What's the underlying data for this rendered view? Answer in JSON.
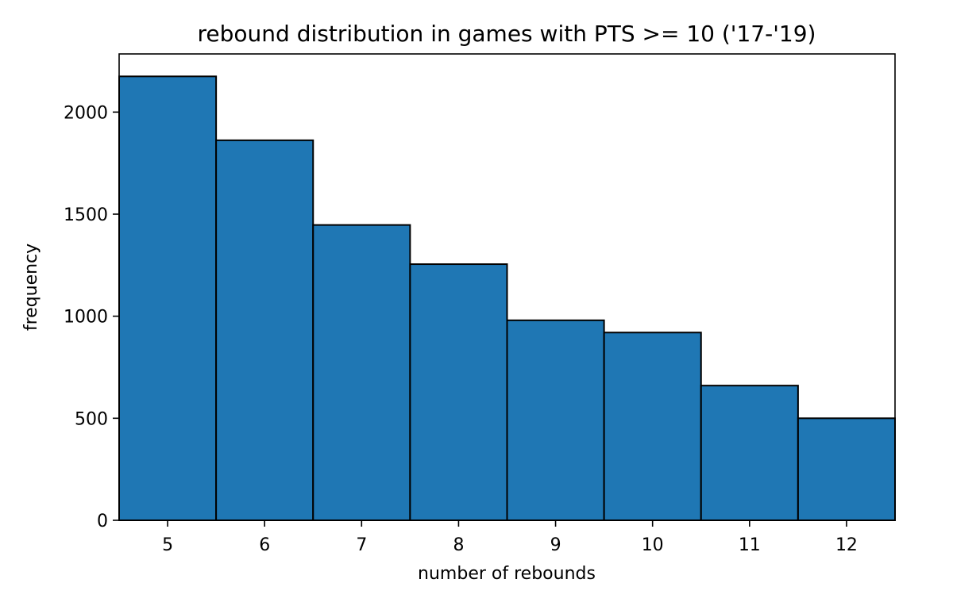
{
  "chart_data": {
    "type": "bar",
    "title": "rebound distribution in games with PTS >= 10 ('17-'19)",
    "xlabel": "number of rebounds",
    "ylabel": "frequency",
    "categories": [
      "5",
      "6",
      "7",
      "8",
      "9",
      "10",
      "11",
      "12"
    ],
    "values": [
      2175,
      1862,
      1447,
      1255,
      980,
      920,
      660,
      500
    ],
    "xlim": [
      4.5,
      12.5
    ],
    "ylim": [
      0,
      2285
    ],
    "yticks": [
      0,
      500,
      1000,
      1500,
      2000
    ],
    "grid": false,
    "legend": "none",
    "colors": {
      "bar_fill": "#1f77b4",
      "bar_edge": "#000000",
      "axis": "#000000",
      "background": "#ffffff"
    }
  }
}
